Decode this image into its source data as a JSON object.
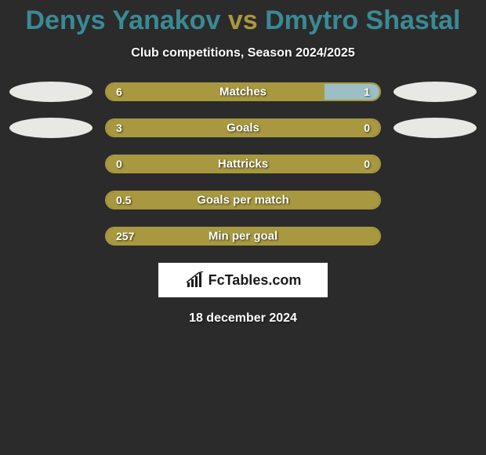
{
  "title": {
    "player1": "Denys Yanakov",
    "vs": "vs",
    "player2": "Dmytro Shastal",
    "color1": "#3a8a94",
    "color_vs": "#a8983f",
    "color2": "#3a8a94",
    "fontsize": 34
  },
  "subtitle": "Club competitions, Season 2024/2025",
  "colors": {
    "bar_left": "#a8983f",
    "bar_right": "#9bbfc4",
    "bar_border": "#a8983f",
    "ellipse": "#e8e8e4",
    "background": "#2b2b2b",
    "text": "#ffffff"
  },
  "rows": [
    {
      "label": "Matches",
      "left_val": "6",
      "right_val": "1",
      "left_pct": 80,
      "show_left_ellipse": true,
      "show_right_ellipse": true
    },
    {
      "label": "Goals",
      "left_val": "3",
      "right_val": "0",
      "left_pct": 100,
      "show_left_ellipse": true,
      "show_right_ellipse": true
    },
    {
      "label": "Hattricks",
      "left_val": "0",
      "right_val": "0",
      "left_pct": 100,
      "show_left_ellipse": false,
      "show_right_ellipse": false
    },
    {
      "label": "Goals per match",
      "left_val": "0.5",
      "right_val": "",
      "left_pct": 100,
      "show_left_ellipse": false,
      "show_right_ellipse": false
    },
    {
      "label": "Min per goal",
      "left_val": "257",
      "right_val": "",
      "left_pct": 100,
      "show_left_ellipse": false,
      "show_right_ellipse": false
    }
  ],
  "branding": "FcTables.com",
  "date": "18 december 2024"
}
